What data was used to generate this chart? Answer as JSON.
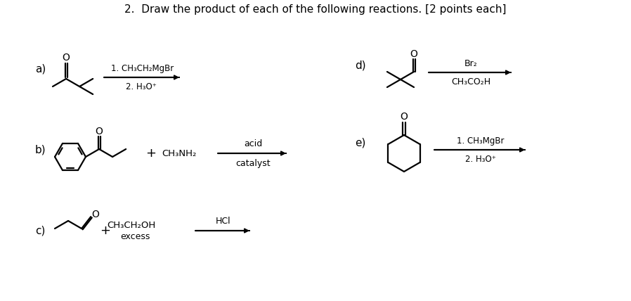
{
  "title": "2.  Draw the product of each of the following reactions. [2 points each]",
  "title_fontsize": 11,
  "background_color": "#ffffff",
  "text_color": "#000000",
  "reactions": [
    {
      "label": "a)",
      "r1": "1. CH₃CH₂MgBr",
      "r2": "2. H₃O⁺"
    },
    {
      "label": "b)",
      "plus": "+ CH₃NH₂",
      "r1": "acid",
      "r2": "catalyst"
    },
    {
      "label": "c)",
      "plus": "+",
      "plus2": "CH₃CH₂OH",
      "plus3": "excess",
      "r1": "HCl"
    },
    {
      "label": "d)",
      "r1": "Br₂",
      "r2": "CH₃CO₂H"
    },
    {
      "label": "e)",
      "r1": "1. CH₃MgBr",
      "r2": "2. H₃O⁺"
    }
  ]
}
